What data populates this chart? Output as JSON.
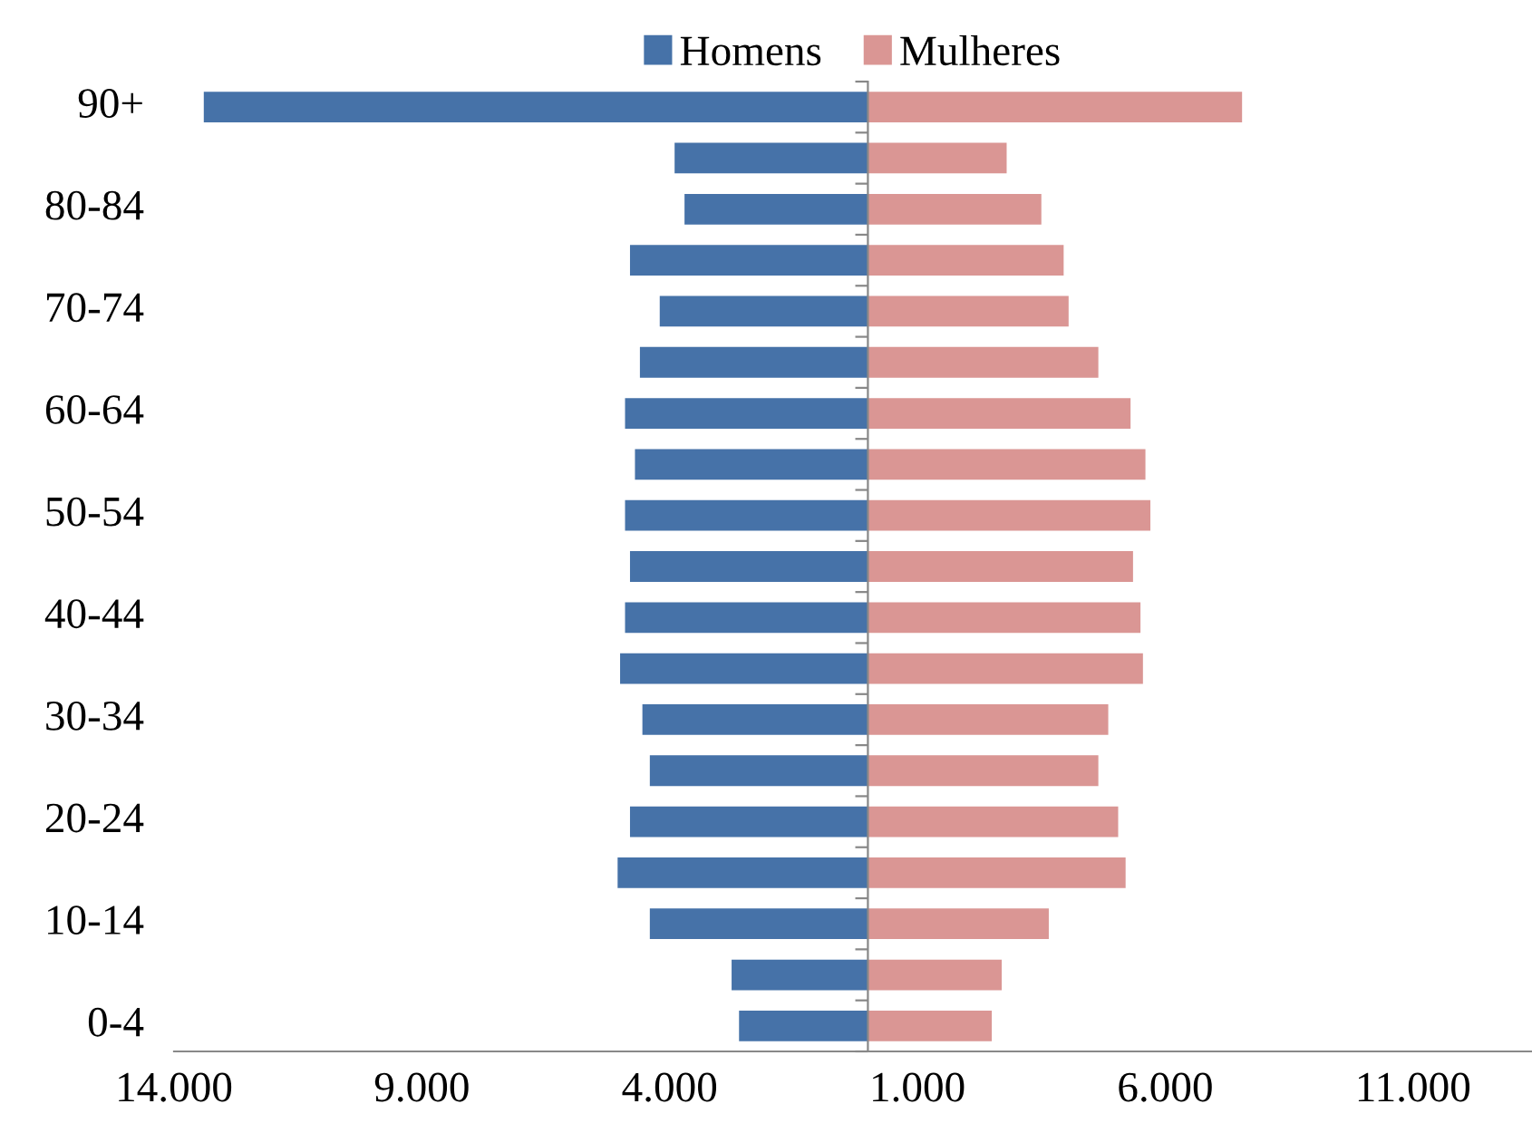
{
  "chart_data": {
    "type": "bar",
    "orientation": "horizontal",
    "stacked": true,
    "categories": [
      "90+",
      null,
      "80-84",
      null,
      "70-74",
      null,
      "60-64",
      null,
      "50-54",
      null,
      "40-44",
      null,
      "30-34",
      null,
      "20-24",
      null,
      "10-14",
      null,
      "0-4"
    ],
    "series": [
      {
        "name": "Homens",
        "color": "#4672a8",
        "values": [
          -13400,
          -3900,
          -3700,
          -4800,
          -4200,
          -4600,
          -4900,
          -4700,
          -4900,
          -4800,
          -4900,
          -5000,
          -4550,
          -4400,
          -4800,
          -5050,
          -4400,
          -2750,
          -2600
        ]
      },
      {
        "name": "Mulheres",
        "color": "#da9694",
        "values": [
          7550,
          2800,
          3500,
          3950,
          4050,
          4650,
          5300,
          5600,
          5700,
          5350,
          5500,
          5550,
          4850,
          4650,
          5050,
          5200,
          3650,
          2700,
          2500
        ]
      }
    ],
    "xlim": [
      -14000,
      13400
    ],
    "xticks": [
      {
        "value": -14000,
        "label": "14.000"
      },
      {
        "value": -9000,
        "label": "9.000"
      },
      {
        "value": -4000,
        "label": "4.000"
      },
      {
        "value": 1000,
        "label": "1.000"
      },
      {
        "value": 6000,
        "label": "6.000"
      },
      {
        "value": 11000,
        "label": "11.000"
      }
    ],
    "grid": false,
    "legend": "top"
  }
}
